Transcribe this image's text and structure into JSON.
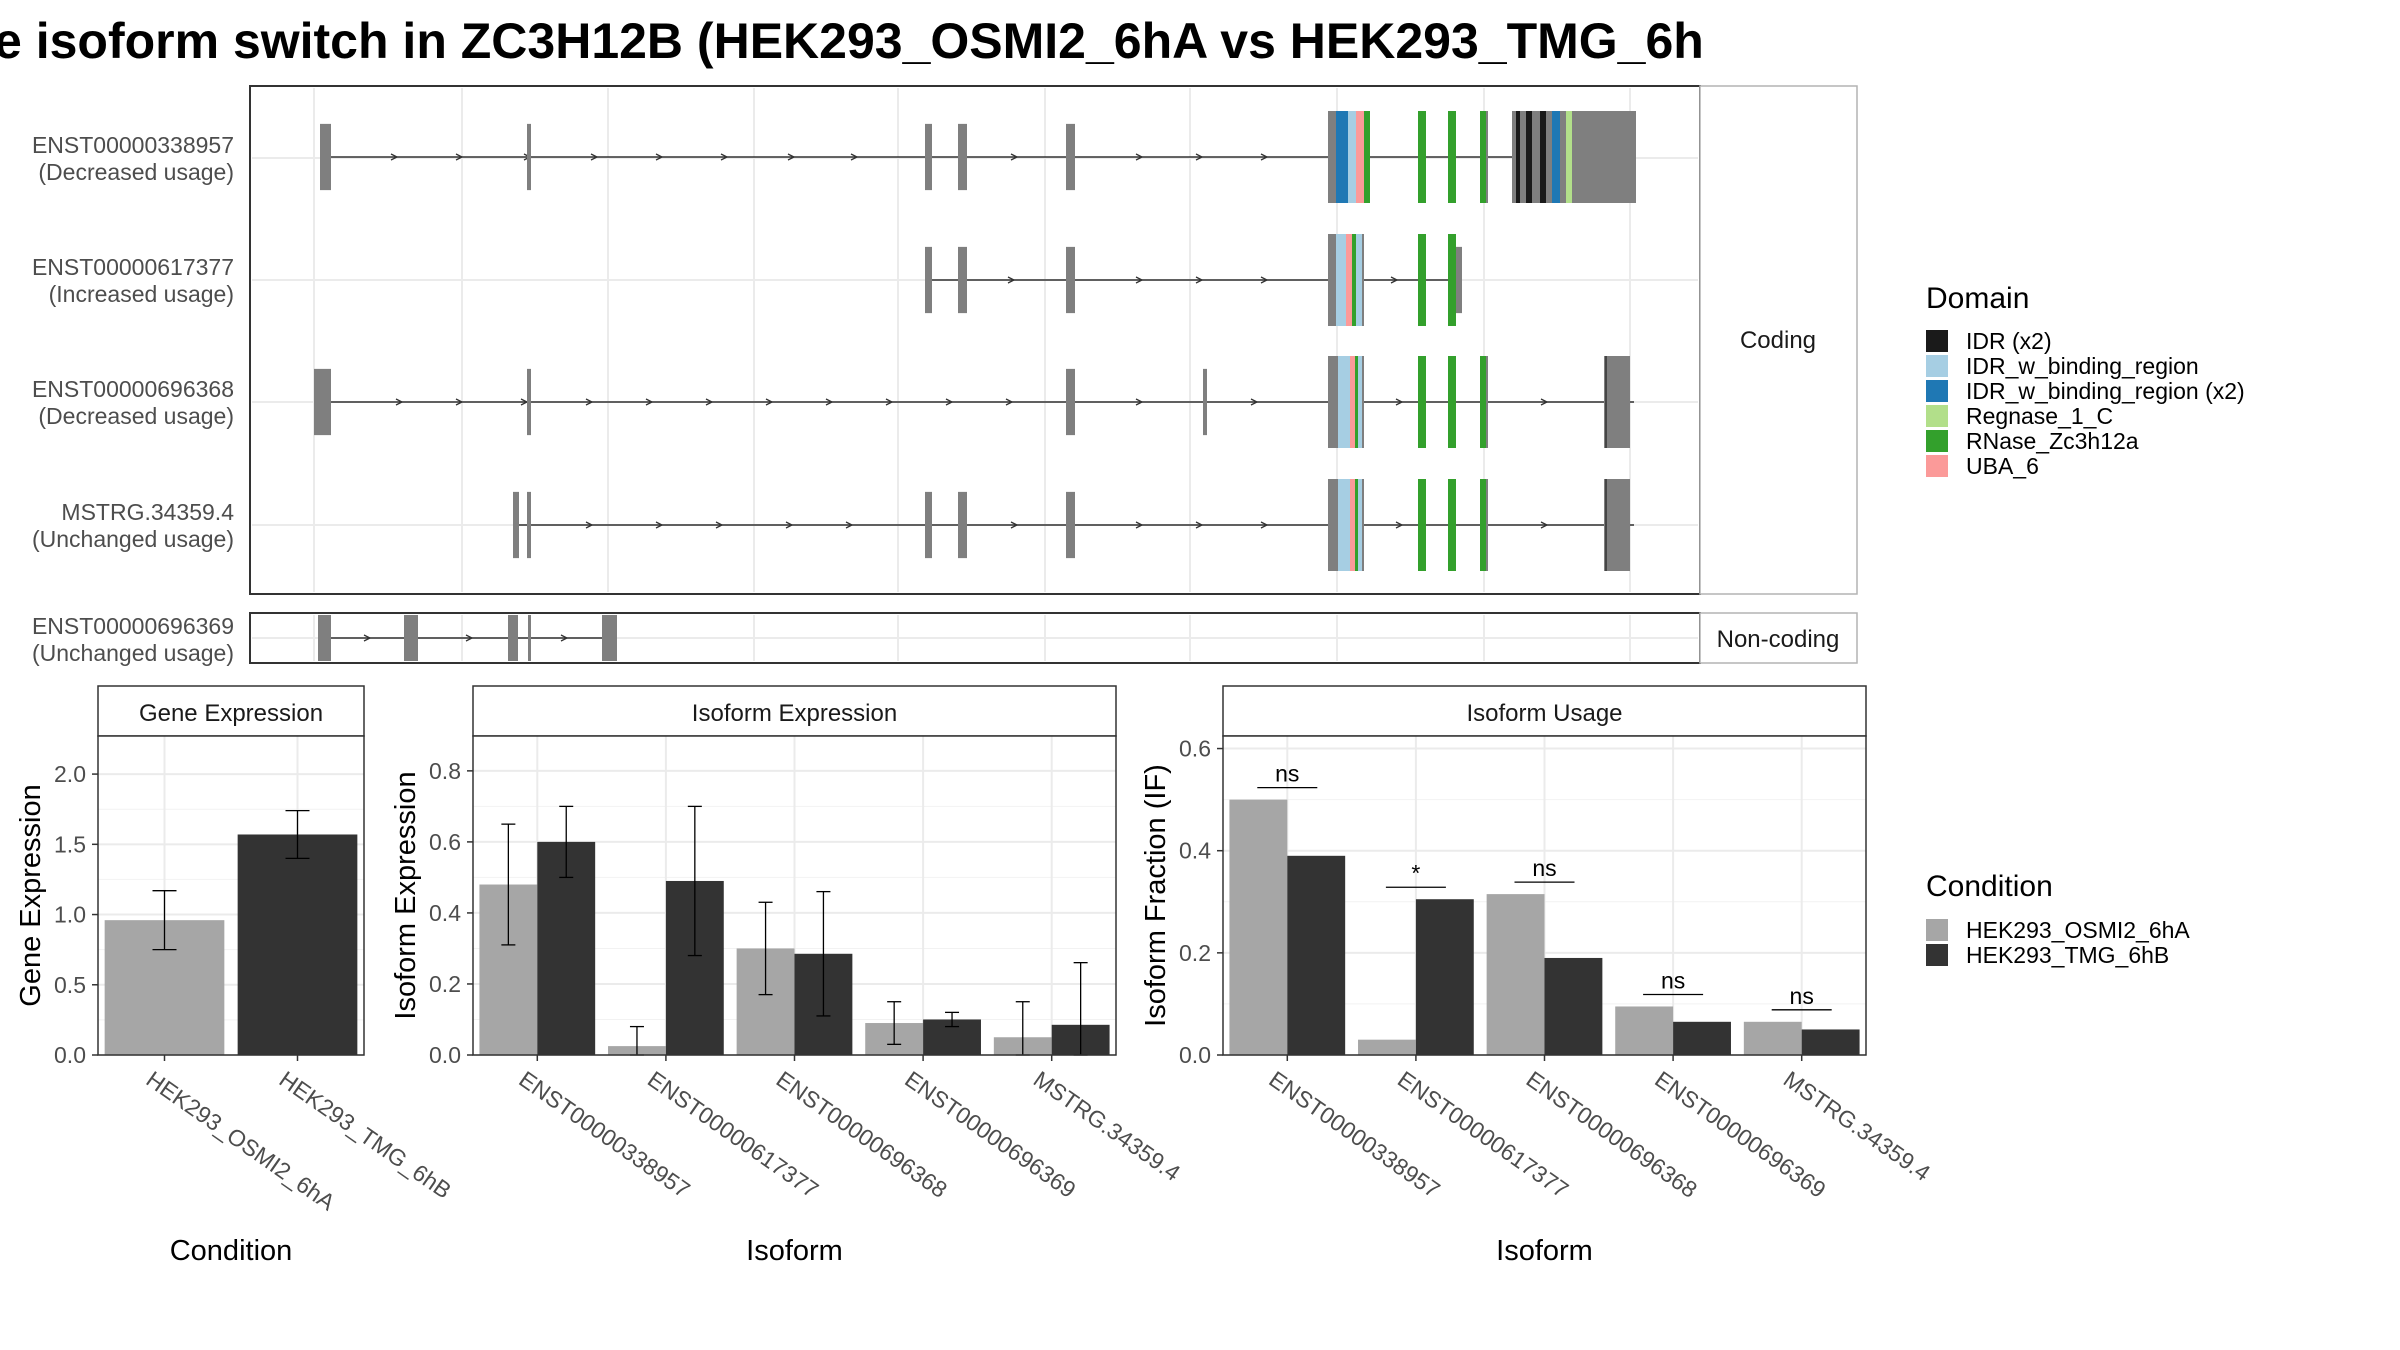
{
  "title": "e isoform switch in ZC3H12B (HEK293_OSMI2_6hA vs HEK293_TMG_6h",
  "colors": {
    "exon": "#7f7f7f",
    "cond1": "#a6a6a6",
    "cond2": "#333333",
    "grid": "#ebebeb",
    "IDR": "#1a1a1a",
    "IDR_w_binding_region": "#a6cee3",
    "IDR_w_binding_region_x2": "#1f78b4",
    "Regnase_1_C": "#b2df8a",
    "RNase_Zc3h12a": "#33a02c",
    "UBA_6": "#fb9a99"
  },
  "transcripts": {
    "strip_coding": "Coding",
    "strip_noncoding": "Non-coding",
    "coding": [
      {
        "id": "ENST00000338957",
        "usage": "(Decreased usage)"
      },
      {
        "id": "ENST00000617377",
        "usage": "(Increased usage)"
      },
      {
        "id": "ENST00000696368",
        "usage": "(Decreased usage)"
      },
      {
        "id": "MSTRG.34359.4",
        "usage": "(Unchanged usage)"
      }
    ],
    "noncoding": [
      {
        "id": "ENST00000696369",
        "usage": "(Unchanged usage)"
      }
    ]
  },
  "legend_domain": {
    "title": "Domain",
    "items": [
      {
        "label": "IDR (x2)",
        "color_key": "IDR"
      },
      {
        "label": "IDR_w_binding_region",
        "color_key": "IDR_w_binding_region"
      },
      {
        "label": "IDR_w_binding_region (x2)",
        "color_key": "IDR_w_binding_region_x2"
      },
      {
        "label": "Regnase_1_C",
        "color_key": "Regnase_1_C"
      },
      {
        "label": "RNase_Zc3h12a",
        "color_key": "RNase_Zc3h12a"
      },
      {
        "label": "UBA_6",
        "color_key": "UBA_6"
      }
    ]
  },
  "legend_condition": {
    "title": "Condition",
    "items": [
      {
        "label": "HEK293_OSMI2_6hA",
        "color_key": "cond1"
      },
      {
        "label": "HEK293_TMG_6hB",
        "color_key": "cond2"
      }
    ]
  },
  "chart_data": [
    {
      "type": "bar",
      "panel": "Gene Expression",
      "xlabel": "Condition",
      "ylabel": "Gene Expression",
      "ylim": [
        0,
        2.2
      ],
      "yticks": [
        0.0,
        0.5,
        1.0,
        1.5,
        2.0
      ],
      "ytick_labels": [
        "0.0",
        "0.5",
        "1.0",
        "1.5",
        "2.0"
      ],
      "categories": [
        "HEK293_OSMI2_6hA",
        "HEK293_TMG_6hB"
      ],
      "values": [
        0.96,
        1.57
      ],
      "errors": [
        [
          0.75,
          1.17
        ],
        [
          1.4,
          1.74
        ]
      ]
    },
    {
      "type": "bar",
      "panel": "Isoform Expression",
      "xlabel": "Isoform",
      "ylabel": "Isoform Expression",
      "ylim": [
        0,
        0.87
      ],
      "yticks": [
        0.0,
        0.2,
        0.4,
        0.6,
        0.8
      ],
      "ytick_labels": [
        "0.0",
        "0.2",
        "0.4",
        "0.6",
        "0.8"
      ],
      "categories": [
        "ENST00000338957",
        "ENST00000617377",
        "ENST00000696368",
        "ENST00000696369",
        "MSTRG.34359.4"
      ],
      "series": [
        {
          "name": "HEK293_OSMI2_6hA",
          "values": [
            0.48,
            0.025,
            0.3,
            0.09,
            0.05
          ],
          "errors": [
            [
              0.31,
              0.65
            ],
            [
              0.0,
              0.08
            ],
            [
              0.17,
              0.43
            ],
            [
              0.03,
              0.15
            ],
            [
              0.0,
              0.15
            ]
          ]
        },
        {
          "name": "HEK293_TMG_6hB",
          "values": [
            0.6,
            0.49,
            0.285,
            0.1,
            0.085
          ],
          "errors": [
            [
              0.5,
              0.7
            ],
            [
              0.28,
              0.7
            ],
            [
              0.11,
              0.46
            ],
            [
              0.08,
              0.12
            ],
            [
              0.0,
              0.26
            ]
          ]
        }
      ]
    },
    {
      "type": "bar",
      "panel": "Isoform Usage",
      "xlabel": "Isoform",
      "ylabel": "Isoform Fraction (IF)",
      "ylim": [
        0,
        0.605
      ],
      "yticks": [
        0.0,
        0.2,
        0.4,
        0.6
      ],
      "ytick_labels": [
        "0.0",
        "0.2",
        "0.4",
        "0.6"
      ],
      "categories": [
        "ENST00000338957",
        "ENST00000617377",
        "ENST00000696368",
        "ENST00000696369",
        "MSTRG.34359.4"
      ],
      "series": [
        {
          "name": "HEK293_OSMI2_6hA",
          "values": [
            0.5,
            0.03,
            0.315,
            0.095,
            0.065
          ]
        },
        {
          "name": "HEK293_TMG_6hB",
          "values": [
            0.39,
            0.305,
            0.19,
            0.065,
            0.05
          ]
        }
      ],
      "significance": [
        "ns",
        "*",
        "ns",
        "ns",
        "ns"
      ]
    }
  ]
}
